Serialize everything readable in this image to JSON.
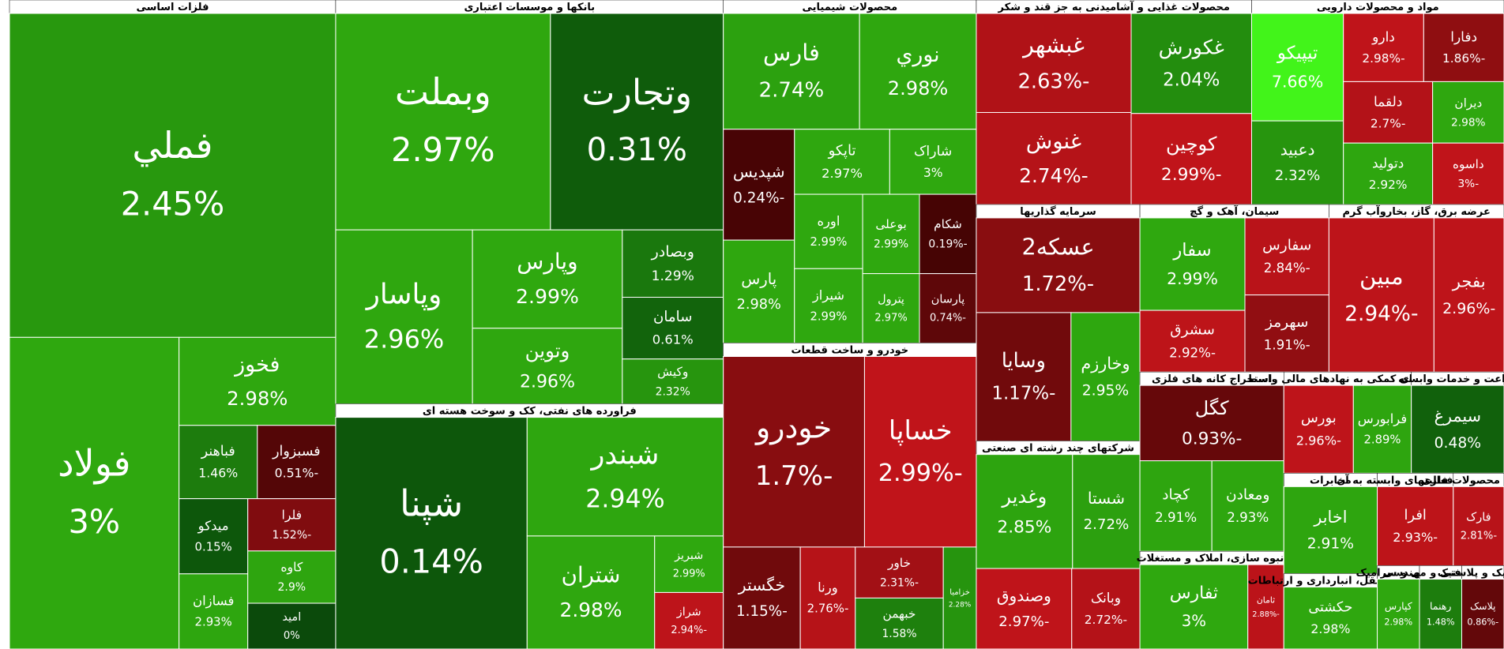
{
  "chart_data": {
    "type": "treemap",
    "sectors": [
      {
        "name": "فلزات اساسی",
        "tiles": [
          {
            "name": "فملي",
            "value": 2.45,
            "value_label": "2.45%",
            "size": 92
          },
          {
            "name": "فولاد",
            "value": 3,
            "value_label": "3%",
            "size": 46
          },
          {
            "name": "فخوز",
            "value": 2.98,
            "value_label": "2.98%",
            "size": 12
          },
          {
            "name": "فباهنر",
            "value": 1.46,
            "value_label": "1.46%",
            "size": 5
          },
          {
            "name": "فسبزوار",
            "value": -0.51,
            "value_label": "-0.51%",
            "size": 5
          },
          {
            "name": "میدکو",
            "value": 0.15,
            "value_label": "0.15%",
            "size": 4.5
          },
          {
            "name": "فسازان",
            "value": 2.93,
            "value_label": "2.93%",
            "size": 4.5
          },
          {
            "name": "فلرا",
            "value": -1.52,
            "value_label": "-1.52%",
            "size": 4
          },
          {
            "name": "کاوه",
            "value": 2.9,
            "value_label": "2.9%",
            "size": 4
          },
          {
            "name": "امید",
            "value": 0,
            "value_label": "0%",
            "size": 3.5
          }
        ]
      },
      {
        "name": "بانکها و موسسات اعتباری",
        "tiles": [
          {
            "name": "وبملت",
            "value": 2.97,
            "value_label": "2.97%",
            "size": 41
          },
          {
            "name": "وتجارت",
            "value": 0.31,
            "value_label": "0.31%",
            "size": 33
          },
          {
            "name": "وپاسار",
            "value": 2.96,
            "value_label": "2.96%",
            "size": 21
          },
          {
            "name": "وپارس",
            "value": 2.99,
            "value_label": "2.99%",
            "size": 13
          },
          {
            "name": "وتوين",
            "value": 2.96,
            "value_label": "2.96%",
            "size": 10
          },
          {
            "name": "وبصادر",
            "value": 1.29,
            "value_label": "1.29%",
            "size": 6
          },
          {
            "name": "سامان",
            "value": 0.61,
            "value_label": "0.61%",
            "size": 5.5
          },
          {
            "name": "وکیش",
            "value": 2.32,
            "value_label": "2.32%",
            "size": 4
          }
        ]
      },
      {
        "name": "فراورده های نفتی، کک و سوخت هسته ای",
        "tiles": [
          {
            "name": "شپنا",
            "value": 0.14,
            "value_label": "0.14%",
            "size": 40
          },
          {
            "name": "شبندر",
            "value": 2.94,
            "value_label": "2.94%",
            "size": 21
          },
          {
            "name": "شتران",
            "value": 2.98,
            "value_label": "2.98%",
            "size": 13
          },
          {
            "name": "شبریز",
            "value": 2.99,
            "value_label": "2.99%",
            "size": 3.5
          },
          {
            "name": "شراز",
            "value": -2.94,
            "value_label": "-2.94%",
            "size": 3.5
          }
        ]
      },
      {
        "name": "محصولات شیمیایی",
        "tiles": [
          {
            "name": "فارس",
            "value": 2.74,
            "value_label": "2.74%",
            "size": 14
          },
          {
            "name": "نوري",
            "value": 2.98,
            "value_label": "2.98%",
            "size": 12
          },
          {
            "name": "شپدیس",
            "value": -0.24,
            "value_label": "-0.24%",
            "size": 7
          },
          {
            "name": "پارس",
            "value": 2.98,
            "value_label": "2.98%",
            "size": 6.5
          },
          {
            "name": "تاپکو",
            "value": 2.97,
            "value_label": "2.97%",
            "size": 5.5
          },
          {
            "name": "شاراک",
            "value": 3,
            "value_label": "3%",
            "size": 5
          },
          {
            "name": "اوره",
            "value": 2.99,
            "value_label": "2.99%",
            "size": 4.5
          },
          {
            "name": "شیراز",
            "value": 2.99,
            "value_label": "2.99%",
            "size": 4.5
          },
          {
            "name": "بوعلی",
            "value": 2.99,
            "value_label": "2.99%",
            "size": 4
          },
          {
            "name": "شکام",
            "value": -0.19,
            "value_label": "-0.19%",
            "size": 4
          },
          {
            "name": "پترول",
            "value": 2.97,
            "value_label": "2.97%",
            "size": 3.5
          },
          {
            "name": "پارسان",
            "value": -0.74,
            "value_label": "-0.74%",
            "size": 3.5
          }
        ]
      },
      {
        "name": "خودرو و ساخت قطعات",
        "tiles": [
          {
            "name": "خودرو",
            "value": -1.7,
            "value_label": "-1.7%",
            "size": 24
          },
          {
            "name": "خساپا",
            "value": -2.99,
            "value_label": "-2.99%",
            "size": 19
          },
          {
            "name": "خگستر",
            "value": -1.15,
            "value_label": "-1.15%",
            "size": 7
          },
          {
            "name": "ورنا",
            "value": -2.76,
            "value_label": "-2.76%",
            "size": 5
          },
          {
            "name": "خاور",
            "value": -2.31,
            "value_label": "-2.31%",
            "size": 4
          },
          {
            "name": "خبهمن",
            "value": 1.58,
            "value_label": "1.58%",
            "size": 4
          },
          {
            "name": "خزامیا",
            "value": 2.28,
            "value_label": "2.28%",
            "size": 3
          }
        ]
      },
      {
        "name": "محصولات غذایی و آشامیدنی به جز قند و شکر",
        "tiles": [
          {
            "name": "غبشهر",
            "value": -2.63,
            "value_label": "-2.63%",
            "size": 14
          },
          {
            "name": "غنوش",
            "value": -2.74,
            "value_label": "-2.74%",
            "size": 13
          },
          {
            "name": "غکورش",
            "value": 2.04,
            "value_label": "2.04%",
            "size": 11
          },
          {
            "name": "کوچین",
            "value": -2.99,
            "value_label": "-2.99%",
            "size": 10
          }
        ]
      },
      {
        "name": "مواد و محصولات دارویی",
        "tiles": [
          {
            "name": "تیپیکو",
            "value": 7.66,
            "value_label": "7.66%",
            "size": 9
          },
          {
            "name": "دعبید",
            "value": 2.32,
            "value_label": "2.32%",
            "size": 7
          },
          {
            "name": "دارو",
            "value": -2.98,
            "value_label": "-2.98%",
            "size": 5
          },
          {
            "name": "دفارا",
            "value": -1.86,
            "value_label": "-1.86%",
            "size": 5
          },
          {
            "name": "دلقما",
            "value": -2.7,
            "value_label": "-2.7%",
            "size": 5
          },
          {
            "name": "دتولید",
            "value": 2.92,
            "value_label": "2.92%",
            "size": 5
          },
          {
            "name": "دیران",
            "value": 2.98,
            "value_label": "2.98%",
            "size": 4
          },
          {
            "name": "داسوه",
            "value": -3,
            "value_label": "-3%",
            "size": 4
          }
        ]
      },
      {
        "name": "سرمایه گذاریها",
        "tiles": [
          {
            "name": "عسکه2",
            "value": -1.72,
            "value_label": "-1.72%",
            "size": 14
          },
          {
            "name": "وسایا",
            "value": -1.17,
            "value_label": "-1.17%",
            "size": 11
          },
          {
            "name": "وخارزم",
            "value": 2.95,
            "value_label": "2.95%",
            "size": 8
          }
        ]
      },
      {
        "name": "شرکتهای چند رشته ای صنعتی",
        "tiles": [
          {
            "name": "وغدیر",
            "value": 2.85,
            "value_label": "2.85%",
            "size": 10
          },
          {
            "name": "شستا",
            "value": 2.72,
            "value_label": "2.72%",
            "size": 7
          },
          {
            "name": "وصندوق",
            "value": -2.97,
            "value_label": "-2.97%",
            "size": 7
          },
          {
            "name": "وبانک",
            "value": -2.72,
            "value_label": "-2.72%",
            "size": 5
          }
        ]
      },
      {
        "name": "سیمان، آهک و گچ",
        "tiles": [
          {
            "name": "سفار",
            "value": 2.99,
            "value_label": "2.99%",
            "size": 9
          },
          {
            "name": "سشرق",
            "value": -2.92,
            "value_label": "-2.92%",
            "size": 6
          },
          {
            "name": "سفارس",
            "value": -2.84,
            "value_label": "-2.84%",
            "size": 6
          },
          {
            "name": "سهرمز",
            "value": -1.91,
            "value_label": "-1.91%",
            "size": 6
          }
        ]
      },
      {
        "name": "عرضه برق، گاز، بخاروآب گرم",
        "tiles": [
          {
            "name": "مبین",
            "value": -2.94,
            "value_label": "-2.94%",
            "size": 15
          },
          {
            "name": "بفجر",
            "value": -2.96,
            "value_label": "-2.96%",
            "size": 10
          }
        ]
      },
      {
        "name": "استخراج کانه های فلزی",
        "tiles": [
          {
            "name": "کگل",
            "value": -0.93,
            "value_label": "-0.93%",
            "size": 10
          },
          {
            "name": "کچاد",
            "value": 2.91,
            "value_label": "2.91%",
            "size": 6
          },
          {
            "name": "ومعادن",
            "value": 2.93,
            "value_label": "2.93%",
            "size": 6
          }
        ]
      },
      {
        "name": "انبوه سازی، املاک و مستغلات",
        "tiles": [
          {
            "name": "ثفارس",
            "value": 3,
            "value_label": "3%",
            "size": 9
          },
          {
            "name": "ثامان",
            "value": -2.88,
            "value_label": "-2.88%",
            "size": 3
          }
        ]
      },
      {
        "name": "فعالیتهای کمکی به نهادهای مالی واسط",
        "tiles": [
          {
            "name": "بورس",
            "value": -2.96,
            "value_label": "-2.96%",
            "size": 6
          },
          {
            "name": "فرابورس",
            "value": 2.89,
            "value_label": "2.89%",
            "size": 5
          }
        ]
      },
      {
        "name": "زراعت و خدمات وابسته",
        "tiles": [
          {
            "name": "سیمرغ",
            "value": 0.48,
            "value_label": "0.48%",
            "size": 8
          }
        ]
      },
      {
        "name": "مخابرات",
        "tiles": [
          {
            "name": "اخابر",
            "value": 2.91,
            "value_label": "2.91%",
            "size": 8
          }
        ]
      },
      {
        "name": "حمل ونقل، انبارداری و ارتباطات",
        "tiles": [
          {
            "name": "حکشتی",
            "value": 2.98,
            "value_label": "2.98%",
            "size": 6
          }
        ]
      },
      {
        "name": "رایانه و فعالیتهای وابسته به آن",
        "tiles": [
          {
            "name": "افرا",
            "value": -2.93,
            "value_label": "-2.93%",
            "size": 6
          }
        ]
      },
      {
        "name": "ساخت محصولات فلزی",
        "tiles": [
          {
            "name": "فارک",
            "value": -2.81,
            "value_label": "-2.81%",
            "size": 4
          }
        ]
      },
      {
        "name": "کاشی و سرامیک",
        "tiles": [
          {
            "name": "کپارس",
            "value": 2.98,
            "value_label": "2.98%",
            "size": 3
          }
        ]
      },
      {
        "name": "خدمات فنی و مهندسی",
        "tiles": [
          {
            "name": "رهنما",
            "value": 1.48,
            "value_label": "1.48%",
            "size": 3
          }
        ]
      },
      {
        "name": "لاستیک و پلاستیک",
        "tiles": [
          {
            "name": "پلاسک",
            "value": -0.86,
            "value_label": "-0.86%",
            "size": 3
          }
        ]
      }
    ]
  }
}
